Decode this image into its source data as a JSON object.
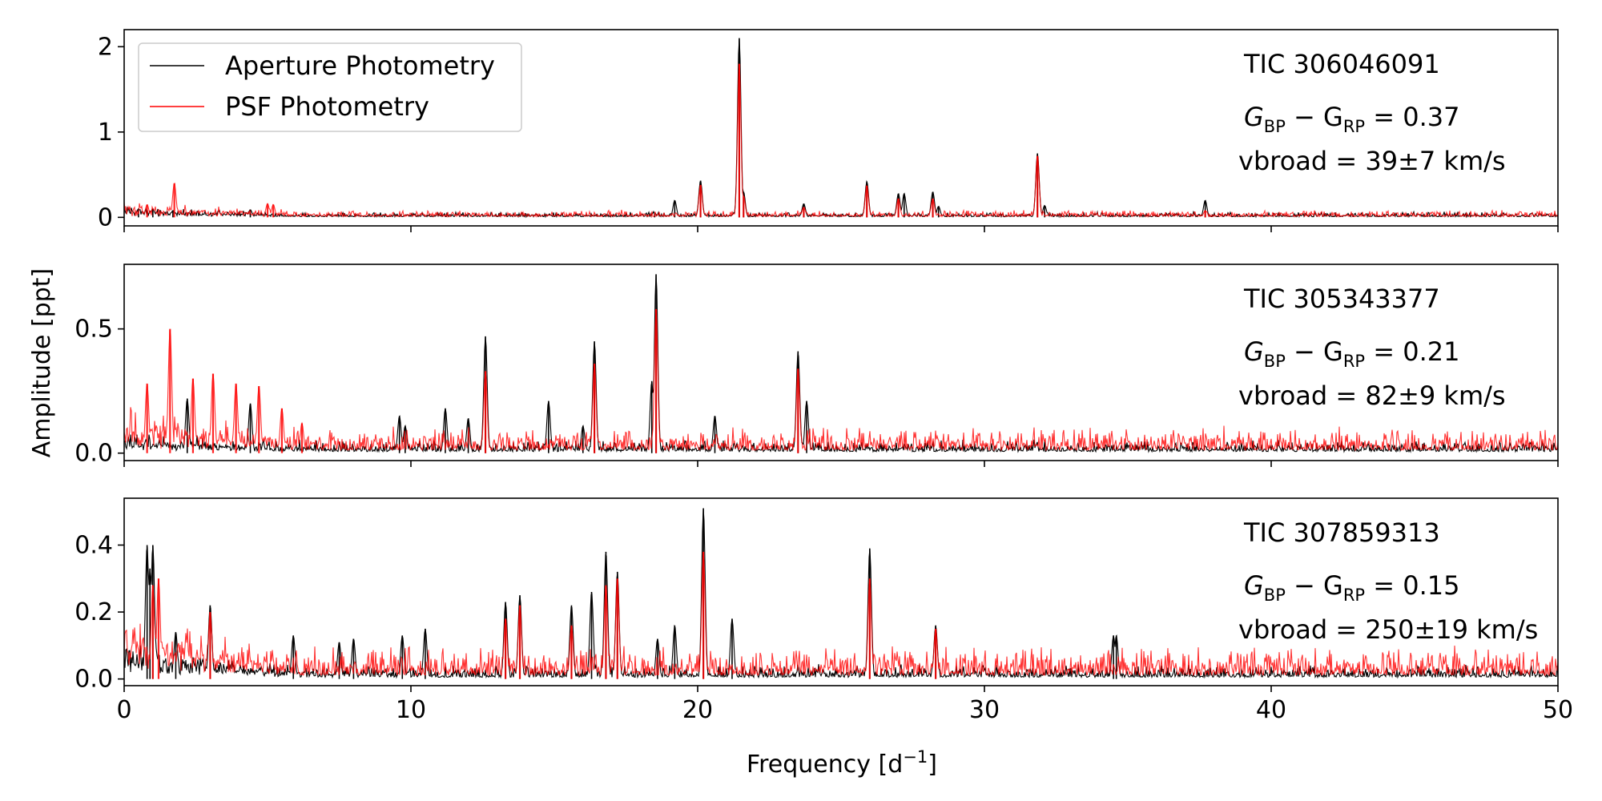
{
  "chart_data": {
    "type": "line",
    "xlabel": "Frequency [d",
    "xlabel_sup": "−1",
    "xlabel_end": "]",
    "ylabel": "Amplitude [ppt]",
    "xlim": [
      0,
      50
    ],
    "xticks": [
      0,
      10,
      20,
      30,
      40,
      50
    ],
    "legend": {
      "placement": "top-left",
      "entries": [
        {
          "name": "Aperture Photometry",
          "color": "#000000"
        },
        {
          "name": "PSF Photometry",
          "color": "#ff0000"
        }
      ]
    },
    "panels": [
      {
        "star": "TIC 306046091",
        "color_label_pre": "G",
        "color_label_sub1": "BP",
        "color_label_mid": " − G",
        "color_label_sub2": "RP",
        "color_value": " = 0.37",
        "vbroad": "vbroad = 39±7 km/s",
        "ylim": [
          -0.1,
          2.2
        ],
        "yticks": [
          0,
          1,
          2
        ],
        "ytick_labels": [
          "0",
          "1",
          "2"
        ],
        "series": [
          {
            "name": "Aperture Photometry",
            "noise": 0.03,
            "low_freq_noise": 0.08,
            "peaks": [
              [
                0.5,
                0.1
              ],
              [
                1.0,
                0.1
              ],
              [
                1.7,
                0.08
              ],
              [
                4.4,
                0.09
              ],
              [
                18.5,
                0.05
              ],
              [
                19.2,
                0.2
              ],
              [
                20.1,
                0.43
              ],
              [
                21.45,
                2.1
              ],
              [
                21.6,
                0.3
              ],
              [
                23.7,
                0.16
              ],
              [
                25.9,
                0.42
              ],
              [
                27.0,
                0.28
              ],
              [
                27.2,
                0.28
              ],
              [
                28.2,
                0.3
              ],
              [
                28.4,
                0.13
              ],
              [
                31.85,
                0.75
              ],
              [
                32.1,
                0.14
              ],
              [
                37.7,
                0.2
              ]
            ]
          },
          {
            "name": "PSF Photometry",
            "noise": 0.04,
            "low_freq_noise": 0.12,
            "peaks": [
              [
                1.75,
                0.4
              ],
              [
                0.8,
                0.15
              ],
              [
                5.0,
                0.16
              ],
              [
                5.2,
                0.15
              ],
              [
                20.1,
                0.38
              ],
              [
                21.45,
                1.8
              ],
              [
                21.6,
                0.25
              ],
              [
                23.7,
                0.12
              ],
              [
                25.9,
                0.37
              ],
              [
                27.0,
                0.22
              ],
              [
                28.2,
                0.22
              ],
              [
                31.85,
                0.72
              ],
              [
                37.7,
                0.08
              ]
            ]
          }
        ]
      },
      {
        "star": "TIC 305343377",
        "color_label_pre": "G",
        "color_label_sub1": "BP",
        "color_label_mid": " − G",
        "color_label_sub2": "RP",
        "color_value": " = 0.21",
        "vbroad": "vbroad = 82±9 km/s",
        "ylim": [
          -0.03,
          0.76
        ],
        "yticks": [
          0,
          0.5
        ],
        "ytick_labels": [
          "0.0",
          "0.5"
        ],
        "series": [
          {
            "name": "Aperture Photometry",
            "noise": 0.025,
            "low_freq_noise": 0.04,
            "peaks": [
              [
                2.2,
                0.22
              ],
              [
                4.4,
                0.2
              ],
              [
                9.6,
                0.15
              ],
              [
                9.8,
                0.11
              ],
              [
                11.2,
                0.18
              ],
              [
                12.0,
                0.14
              ],
              [
                12.6,
                0.47
              ],
              [
                14.8,
                0.21
              ],
              [
                16.0,
                0.11
              ],
              [
                16.4,
                0.45
              ],
              [
                18.4,
                0.29
              ],
              [
                18.55,
                0.72
              ],
              [
                20.6,
                0.15
              ],
              [
                23.5,
                0.41
              ],
              [
                23.8,
                0.21
              ]
            ]
          },
          {
            "name": "PSF Photometry",
            "noise": 0.05,
            "low_freq_noise": 0.1,
            "peaks": [
              [
                0.8,
                0.28
              ],
              [
                1.6,
                0.5
              ],
              [
                2.4,
                0.3
              ],
              [
                3.1,
                0.32
              ],
              [
                3.9,
                0.28
              ],
              [
                4.7,
                0.27
              ],
              [
                5.5,
                0.18
              ],
              [
                6.2,
                0.12
              ],
              [
                12.6,
                0.33
              ],
              [
                16.4,
                0.36
              ],
              [
                18.55,
                0.58
              ],
              [
                23.5,
                0.34
              ]
            ]
          }
        ]
      },
      {
        "star": "TIC 307859313",
        "color_label_pre": "G",
        "color_label_sub1": "BP",
        "color_label_mid": " − G",
        "color_label_sub2": "RP",
        "color_value": " = 0.15",
        "vbroad": "vbroad = 250±19 km/s",
        "ylim": [
          -0.02,
          0.54
        ],
        "yticks": [
          0,
          0.2,
          0.4
        ],
        "ytick_labels": [
          "0.0",
          "0.2",
          "0.4"
        ],
        "series": [
          {
            "name": "Aperture Photometry",
            "noise": 0.02,
            "low_freq_noise": 0.08,
            "peaks": [
              [
                0.8,
                0.4
              ],
              [
                1.0,
                0.4
              ],
              [
                0.9,
                0.33
              ],
              [
                1.8,
                0.14
              ],
              [
                3.0,
                0.22
              ],
              [
                5.9,
                0.13
              ],
              [
                7.5,
                0.11
              ],
              [
                8.0,
                0.12
              ],
              [
                9.7,
                0.13
              ],
              [
                10.5,
                0.15
              ],
              [
                13.3,
                0.23
              ],
              [
                13.8,
                0.25
              ],
              [
                15.6,
                0.22
              ],
              [
                16.3,
                0.26
              ],
              [
                16.8,
                0.38
              ],
              [
                17.2,
                0.32
              ],
              [
                18.6,
                0.12
              ],
              [
                19.2,
                0.16
              ],
              [
                20.2,
                0.51
              ],
              [
                21.2,
                0.18
              ],
              [
                26.0,
                0.39
              ],
              [
                28.3,
                0.16
              ],
              [
                34.5,
                0.13
              ],
              [
                34.6,
                0.13
              ]
            ]
          },
          {
            "name": "PSF Photometry",
            "noise": 0.045,
            "low_freq_noise": 0.12,
            "peaks": [
              [
                1.0,
                0.28
              ],
              [
                1.2,
                0.3
              ],
              [
                3.0,
                0.2
              ],
              [
                13.3,
                0.18
              ],
              [
                13.8,
                0.22
              ],
              [
                15.6,
                0.16
              ],
              [
                16.8,
                0.28
              ],
              [
                17.2,
                0.3
              ],
              [
                20.2,
                0.38
              ],
              [
                26.0,
                0.3
              ],
              [
                28.3,
                0.15
              ]
            ]
          }
        ]
      }
    ]
  }
}
